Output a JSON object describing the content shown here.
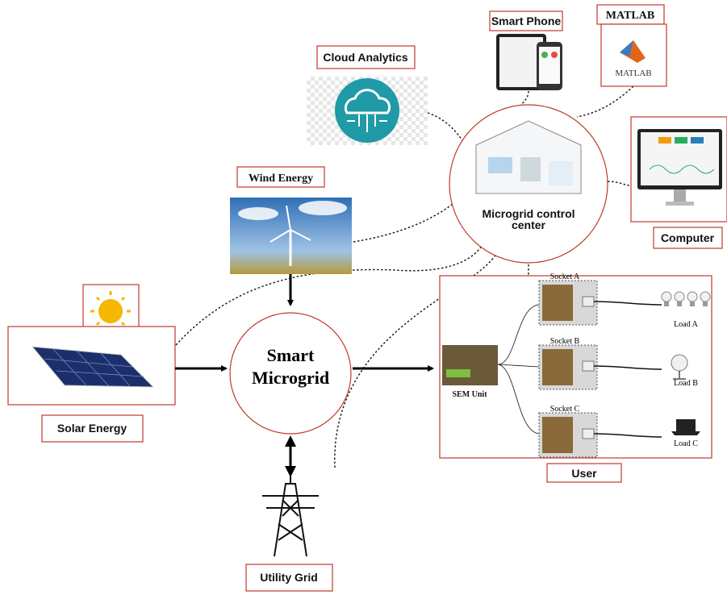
{
  "cloud": {
    "label": "Cloud Analytics"
  },
  "phone": {
    "label": "Smart Phone"
  },
  "matlab": {
    "label": "MATLAB",
    "logo": "MATLAB"
  },
  "control_center": {
    "lines": [
      "Microgrid control",
      "center"
    ]
  },
  "computer": {
    "label": "Computer"
  },
  "wind": {
    "label": "Wind Energy"
  },
  "solar": {
    "label": "Solar Energy"
  },
  "microgrid": {
    "lines": [
      "Smart",
      "Microgrid"
    ]
  },
  "grid": {
    "label": "Utility Grid"
  },
  "user": {
    "label": "User",
    "sem_unit": "SEM Unit",
    "sockets": [
      "Socket A",
      "Socket B",
      "Socket C"
    ],
    "loads": [
      "Load A",
      "Load B",
      "Load C"
    ]
  }
}
